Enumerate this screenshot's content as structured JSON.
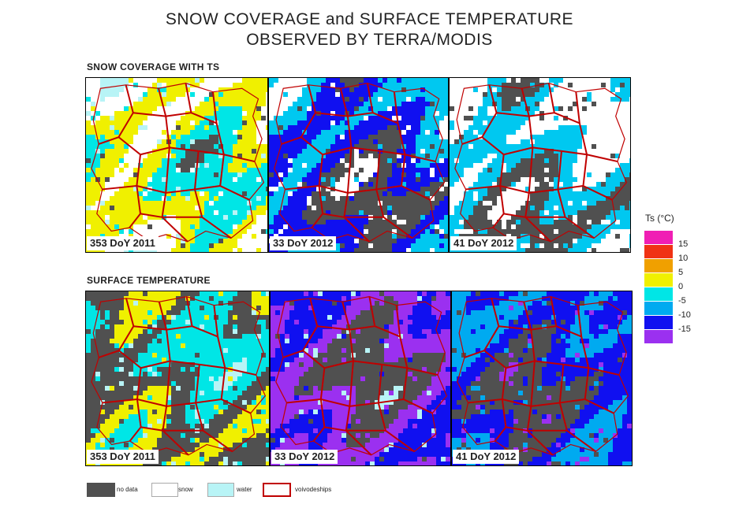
{
  "title": {
    "line1": "SNOW COVERAGE and SURFACE TEMPERATURE",
    "line2": "OBSERVED BY TERRA/MODIS"
  },
  "sections": {
    "top": "SNOW COVERAGE WITH TS",
    "bottom": "SURFACE TEMPERATURE"
  },
  "panels": [
    {
      "label": "353 DoY 2011",
      "row": "snow",
      "palette": [
        "#505050",
        "#00e6e6",
        "#f0f000",
        "#ffffff",
        "#b8f4f6"
      ]
    },
    {
      "label": "33 DoY 2012",
      "row": "snow",
      "palette": [
        "#ffffff",
        "#505050",
        "#1010f0",
        "#00c8f0",
        "#ffffff"
      ]
    },
    {
      "label": "41 DoY 2012",
      "row": "snow",
      "palette": [
        "#ffffff",
        "#505050",
        "#00c8f0",
        "#ffffff",
        "#ffffff"
      ]
    },
    {
      "label": "353 DoY 2011",
      "row": "temp",
      "palette": [
        "#00e6e6",
        "#f0f000",
        "#505050",
        "#00e6e6",
        "#b8f4f6"
      ]
    },
    {
      "label": "33 DoY 2012",
      "row": "temp",
      "palette": [
        "#9b30f0",
        "#1010f0",
        "#9b30f0",
        "#505050",
        "#b8f4f6"
      ]
    },
    {
      "label": "41 DoY 2012",
      "row": "temp",
      "palette": [
        "#1010f0",
        "#00aaf0",
        "#1010f0",
        "#505050",
        "#9b30f0"
      ]
    }
  ],
  "colorbar": {
    "title": "Ts (°C)",
    "items": [
      {
        "color": "#f01eb4",
        "label": "15"
      },
      {
        "color": "#f03214",
        "label": "10"
      },
      {
        "color": "#f0a000",
        "label": "5"
      },
      {
        "color": "#f0f000",
        "label": "0"
      },
      {
        "color": "#00e6e6",
        "label": "-5"
      },
      {
        "color": "#00aaf0",
        "label": "-10"
      },
      {
        "color": "#1010f0",
        "label": "-15"
      },
      {
        "color": "#9b30f0",
        "label": ""
      }
    ]
  },
  "legend": [
    {
      "label": "no data",
      "color": "#505050",
      "border": "#505050"
    },
    {
      "label": "snow",
      "color": "#ffffff",
      "border": "#aaaaaa"
    },
    {
      "label": "water",
      "color": "#b8f4f6",
      "border": "#aaaaaa"
    },
    {
      "label": "voivodeships",
      "color": "#ffffff",
      "border": "#c00000"
    }
  ]
}
